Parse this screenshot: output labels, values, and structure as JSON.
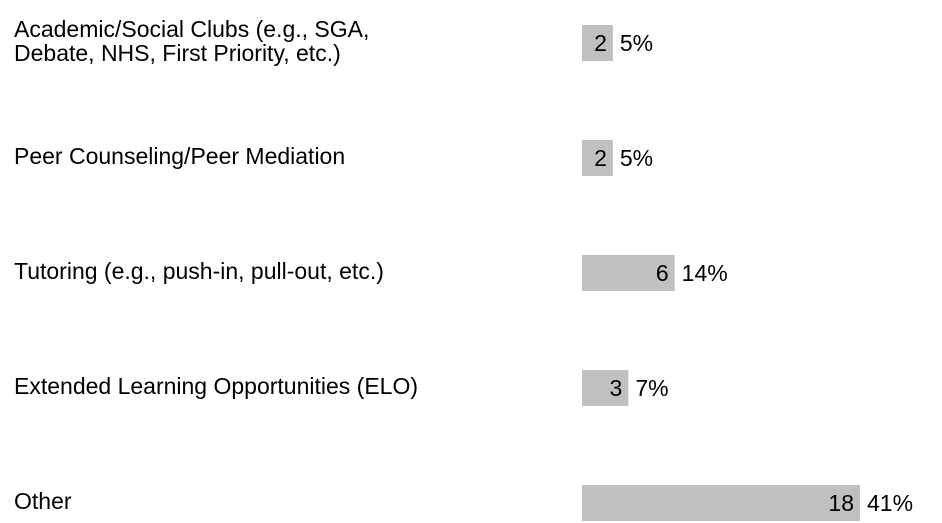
{
  "chart_data": {
    "type": "hbar",
    "categories": [
      [
        "Academic/Social Clubs (e.g., SGA,",
        "Debate, NHS, First Priority, etc.)"
      ],
      [
        "Peer Counseling/Peer Mediation"
      ],
      [
        "Tutoring (e.g., push-in, pull-out, etc.)"
      ],
      [
        "Extended Learning Opportunities (ELO)"
      ],
      [
        "Other"
      ]
    ],
    "values": [
      2,
      2,
      6,
      3,
      18
    ],
    "percents": [
      5,
      5,
      14,
      7,
      41
    ],
    "percent_labels": [
      "5%",
      "5%",
      "14%",
      "7%",
      "41%"
    ],
    "color": "#c0c0c0"
  }
}
